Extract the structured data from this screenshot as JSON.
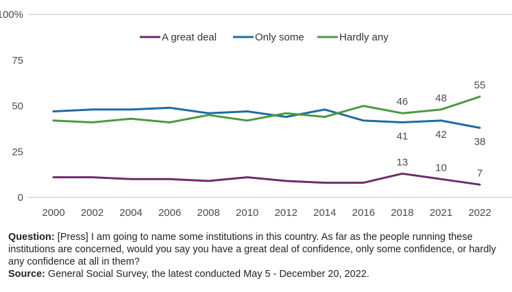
{
  "chart_data": {
    "type": "line",
    "categories": [
      "2000",
      "2002",
      "2004",
      "2006",
      "2008",
      "2010",
      "2012",
      "2014",
      "2016",
      "2018",
      "2021",
      "2022"
    ],
    "ylim": [
      0,
      100
    ],
    "yticks": [
      "0",
      "25",
      "50",
      "75",
      "100%"
    ],
    "ytick_values": [
      0,
      25,
      50,
      75,
      100
    ],
    "grid": false,
    "legend_position": "top-center",
    "series": [
      {
        "name": "A great deal",
        "color": "#6b2c6b",
        "values": [
          11,
          11,
          10,
          10,
          9,
          11,
          9,
          8,
          8,
          13,
          10,
          7
        ]
      },
      {
        "name": "Only some",
        "color": "#1f6aa5",
        "values": [
          47,
          48,
          48,
          49,
          46,
          47,
          44,
          48,
          42,
          41,
          42,
          38
        ]
      },
      {
        "name": "Hardly any",
        "color": "#4a9a3f",
        "values": [
          42,
          41,
          43,
          41,
          45,
          42,
          46,
          44,
          50,
          46,
          48,
          55
        ]
      }
    ],
    "data_labels": [
      {
        "series": 0,
        "index": 9,
        "text": "13",
        "pos": "above"
      },
      {
        "series": 0,
        "index": 10,
        "text": "10",
        "pos": "above"
      },
      {
        "series": 0,
        "index": 11,
        "text": "7",
        "pos": "above"
      },
      {
        "series": 1,
        "index": 9,
        "text": "41",
        "pos": "below"
      },
      {
        "series": 1,
        "index": 10,
        "text": "42",
        "pos": "below"
      },
      {
        "series": 1,
        "index": 11,
        "text": "38",
        "pos": "below"
      },
      {
        "series": 2,
        "index": 9,
        "text": "46",
        "pos": "above"
      },
      {
        "series": 2,
        "index": 10,
        "text": "48",
        "pos": "above"
      },
      {
        "series": 2,
        "index": 11,
        "text": "55",
        "pos": "above"
      }
    ]
  },
  "footnote": {
    "question_label": "Question:",
    "question_text": "[Press] I am going to name some institutions in this country. As far as the people running these institutions are concerned, would you say you have a great deal of confidence, only some confidence, or hardly any confidence at all in them?",
    "source_label": "Source:",
    "source_text": "General Social Survey, the latest conducted May 5 - December 20, 2022."
  }
}
